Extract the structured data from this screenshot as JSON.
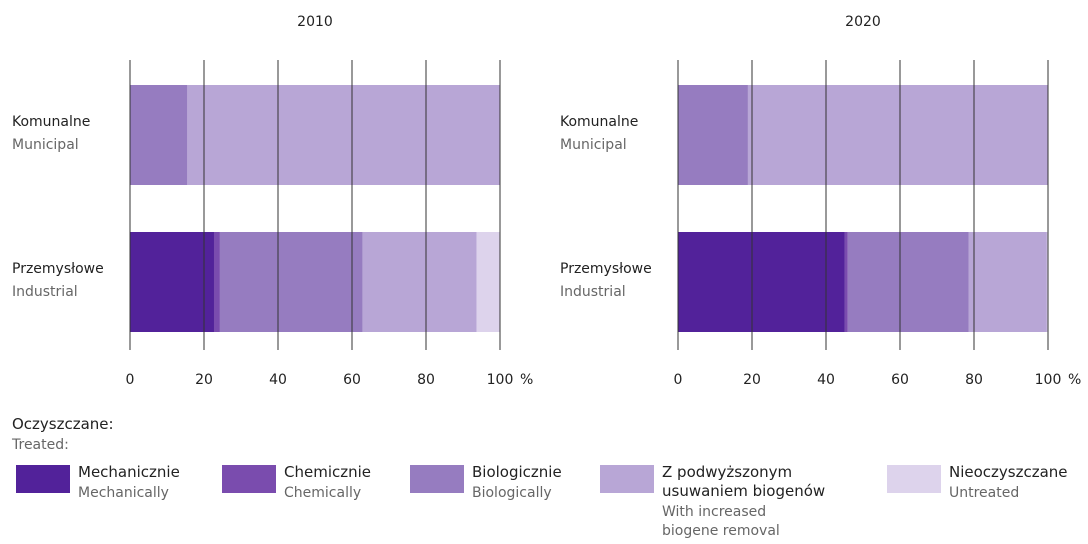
{
  "chart_data": [
    {
      "type": "stacked-barh",
      "title": "2010",
      "xlabel": "%",
      "categories": [
        "Komunalne",
        "Przemysłowe"
      ],
      "categories_en": [
        "Municipal",
        "Industrial"
      ],
      "xlim": [
        0,
        100
      ],
      "xticks": [
        0,
        20,
        40,
        60,
        80,
        100
      ],
      "grid": true,
      "series": [
        {
          "name": "Mechanicznie",
          "name_en": "Mechanically",
          "color": "#52229a",
          "values": [
            0,
            22.7
          ]
        },
        {
          "name": "Chemicznie",
          "name_en": "Chemically",
          "color": "#7a4cae",
          "values": [
            0,
            1.6
          ]
        },
        {
          "name": "Biologicznie",
          "name_en": "Biologically",
          "color": "#967cc0",
          "values": [
            15.5,
            38.6
          ]
        },
        {
          "name": "Z podwyższonym usuwaniem biogenów",
          "name_en": "With increased biogene removal",
          "color": "#b8a6d6",
          "values": [
            84.5,
            30.8
          ]
        },
        {
          "name": "Nieoczyszczane",
          "name_en": "Untreated",
          "color": "#ddd3ec",
          "values": [
            0,
            6.3
          ]
        }
      ]
    },
    {
      "type": "stacked-barh",
      "title": "2020",
      "xlabel": "%",
      "categories": [
        "Komunalne",
        "Przemysłowe"
      ],
      "categories_en": [
        "Municipal",
        "Industrial"
      ],
      "xlim": [
        0,
        100
      ],
      "xticks": [
        0,
        20,
        40,
        60,
        80,
        100
      ],
      "grid": true,
      "series": [
        {
          "name": "Mechanicznie",
          "name_en": "Mechanically",
          "color": "#52229a",
          "values": [
            0,
            45.1
          ]
        },
        {
          "name": "Chemicznie",
          "name_en": "Chemically",
          "color": "#7a4cae",
          "values": [
            0,
            0.8
          ]
        },
        {
          "name": "Biologicznie",
          "name_en": "Biologically",
          "color": "#967cc0",
          "values": [
            18.9,
            32.7
          ]
        },
        {
          "name": "Z podwyższonym usuwaniem biogenów",
          "name_en": "With increased biogene removal",
          "color": "#b8a6d6",
          "values": [
            81.1,
            21.1
          ]
        },
        {
          "name": "Nieoczyszczane",
          "name_en": "Untreated",
          "color": "#ddd3ec",
          "values": [
            0,
            0.3
          ]
        }
      ]
    }
  ],
  "legend": {
    "title": "Oczyszczane:",
    "subtitle": "Treated:"
  }
}
